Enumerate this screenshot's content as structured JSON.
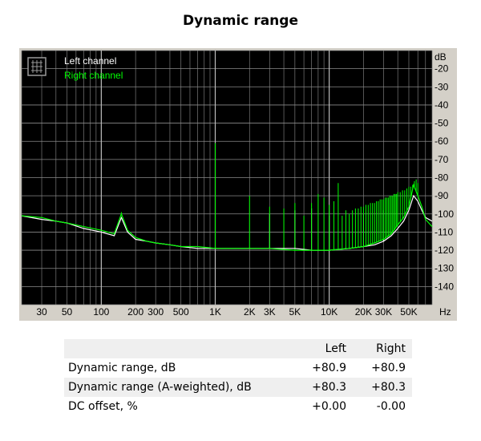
{
  "title": "Dynamic range",
  "chart_data": {
    "type": "line",
    "title": "Dynamic range",
    "xlabel": "Hz",
    "ylabel": "dB",
    "x_scale": "log",
    "xlim": [
      20,
      80000
    ],
    "ylim": [
      -150,
      -10
    ],
    "grid": true,
    "legend_position": "top-left",
    "x_ticks": [
      {
        "v": 30,
        "label": "30"
      },
      {
        "v": 50,
        "label": "50"
      },
      {
        "v": 100,
        "label": "100"
      },
      {
        "v": 200,
        "label": "200"
      },
      {
        "v": 300,
        "label": "300"
      },
      {
        "v": 500,
        "label": "500"
      },
      {
        "v": 1000,
        "label": "1K"
      },
      {
        "v": 2000,
        "label": "2K"
      },
      {
        "v": 3000,
        "label": "3K"
      },
      {
        "v": 5000,
        "label": "5K"
      },
      {
        "v": 10000,
        "label": "10K"
      },
      {
        "v": 20000,
        "label": "20K"
      },
      {
        "v": 30000,
        "label": "30K"
      },
      {
        "v": 50000,
        "label": "50K"
      }
    ],
    "y_ticks": [
      {
        "v": -20,
        "label": "-20"
      },
      {
        "v": -30,
        "label": "-30"
      },
      {
        "v": -40,
        "label": "-40"
      },
      {
        "v": -50,
        "label": "-50"
      },
      {
        "v": -60,
        "label": "-60"
      },
      {
        "v": -70,
        "label": "-70"
      },
      {
        "v": -80,
        "label": "-80"
      },
      {
        "v": -90,
        "label": "-90"
      },
      {
        "v": -100,
        "label": "-100"
      },
      {
        "v": -110,
        "label": "-110"
      },
      {
        "v": -120,
        "label": "-120"
      },
      {
        "v": -130,
        "label": "-130"
      },
      {
        "v": -140,
        "label": "-140"
      }
    ],
    "series": [
      {
        "name": "Left channel",
        "color": "#ffffff",
        "x": [
          20,
          30,
          40,
          50,
          70,
          100,
          130,
          150,
          170,
          200,
          250,
          300,
          400,
          500,
          700,
          1000,
          1500,
          2000,
          3000,
          5000,
          7000,
          10000,
          15000,
          20000,
          25000,
          30000,
          35000,
          40000,
          45000,
          50000,
          55000,
          60000,
          65000,
          70000,
          80000
        ],
        "y": [
          -101,
          -103,
          -104,
          -105,
          -108,
          -110,
          -112,
          -102,
          -110,
          -114,
          -115,
          -116,
          -117,
          -118,
          -119,
          -119,
          -119,
          -119,
          -119,
          -119,
          -120,
          -120,
          -119,
          -118,
          -117,
          -115,
          -112,
          -108,
          -104,
          -98,
          -90,
          -93,
          -98,
          -102,
          -104
        ]
      },
      {
        "name": "Right channel",
        "color": "#00ff00",
        "x": [
          20,
          30,
          40,
          50,
          70,
          100,
          130,
          150,
          170,
          200,
          250,
          300,
          400,
          500,
          700,
          1000,
          1500,
          2000,
          3000,
          5000,
          7000,
          10000,
          15000,
          20000,
          25000,
          30000,
          35000,
          40000,
          45000,
          50000,
          55000,
          60000,
          65000,
          70000,
          80000
        ],
        "y": [
          -101,
          -102,
          -104,
          -105,
          -107,
          -109,
          -111,
          -100,
          -109,
          -113,
          -115,
          -116,
          -117,
          -118,
          -118,
          -119,
          -119,
          -119,
          -119,
          -120,
          -120,
          -120,
          -119,
          -118,
          -116,
          -114,
          -111,
          -106,
          -102,
          -96,
          -84,
          -90,
          -96,
          -103,
          -107
        ]
      }
    ],
    "spikes_right": [
      {
        "x": 150,
        "y": -99
      },
      {
        "x": 1000,
        "y": -61
      },
      {
        "x": 2000,
        "y": -90
      },
      {
        "x": 3000,
        "y": -96
      },
      {
        "x": 4000,
        "y": -97
      },
      {
        "x": 5000,
        "y": -94
      },
      {
        "x": 6000,
        "y": -101
      },
      {
        "x": 7000,
        "y": -94
      },
      {
        "x": 8000,
        "y": -89
      },
      {
        "x": 9000,
        "y": -91
      },
      {
        "x": 10000,
        "y": -95
      },
      {
        "x": 11000,
        "y": -93
      },
      {
        "x": 12000,
        "y": -83
      },
      {
        "x": 13000,
        "y": -101
      },
      {
        "x": 14000,
        "y": -98
      },
      {
        "x": 15000,
        "y": -100
      },
      {
        "x": 16000,
        "y": -98
      },
      {
        "x": 17000,
        "y": -97
      },
      {
        "x": 18000,
        "y": -97
      },
      {
        "x": 19000,
        "y": -96
      },
      {
        "x": 20000,
        "y": -96
      },
      {
        "x": 21000,
        "y": -95
      },
      {
        "x": 22000,
        "y": -95
      },
      {
        "x": 23000,
        "y": -94
      },
      {
        "x": 24000,
        "y": -94
      },
      {
        "x": 25000,
        "y": -94
      },
      {
        "x": 26000,
        "y": -93
      },
      {
        "x": 27000,
        "y": -93
      },
      {
        "x": 28000,
        "y": -92
      },
      {
        "x": 29000,
        "y": -92
      },
      {
        "x": 30000,
        "y": -92
      },
      {
        "x": 31000,
        "y": -91
      },
      {
        "x": 32000,
        "y": -91
      },
      {
        "x": 33000,
        "y": -91
      },
      {
        "x": 34000,
        "y": -90
      },
      {
        "x": 35000,
        "y": -90
      },
      {
        "x": 36000,
        "y": -90
      },
      {
        "x": 37000,
        "y": -89
      },
      {
        "x": 38000,
        "y": -89
      },
      {
        "x": 39000,
        "y": -89
      },
      {
        "x": 40000,
        "y": -88
      },
      {
        "x": 42000,
        "y": -88
      },
      {
        "x": 44000,
        "y": -87
      },
      {
        "x": 46000,
        "y": -87
      },
      {
        "x": 48000,
        "y": -86
      },
      {
        "x": 50000,
        "y": -85
      },
      {
        "x": 52000,
        "y": -85
      },
      {
        "x": 54000,
        "y": -84
      },
      {
        "x": 56000,
        "y": -82
      },
      {
        "x": 58000,
        "y": -81
      },
      {
        "x": 60000,
        "y": -83
      }
    ],
    "spikes_left": [
      {
        "x": 1000,
        "y": -85
      },
      {
        "x": 3000,
        "y": -100
      },
      {
        "x": 5000,
        "y": -98
      },
      {
        "x": 7000,
        "y": -97
      },
      {
        "x": 10000,
        "y": -101
      },
      {
        "x": 20000,
        "y": -100
      },
      {
        "x": 30000,
        "y": -98
      }
    ]
  },
  "table": {
    "headers": [
      "",
      "Left",
      "Right"
    ],
    "rows": [
      {
        "label": "Dynamic range, dB",
        "left": "+80.9",
        "right": "+80.9"
      },
      {
        "label": "Dynamic range (A-weighted), dB",
        "left": "+80.3",
        "right": "+80.3"
      },
      {
        "label": "DC offset, %",
        "left": "+0.00",
        "right": "-0.00"
      }
    ]
  }
}
